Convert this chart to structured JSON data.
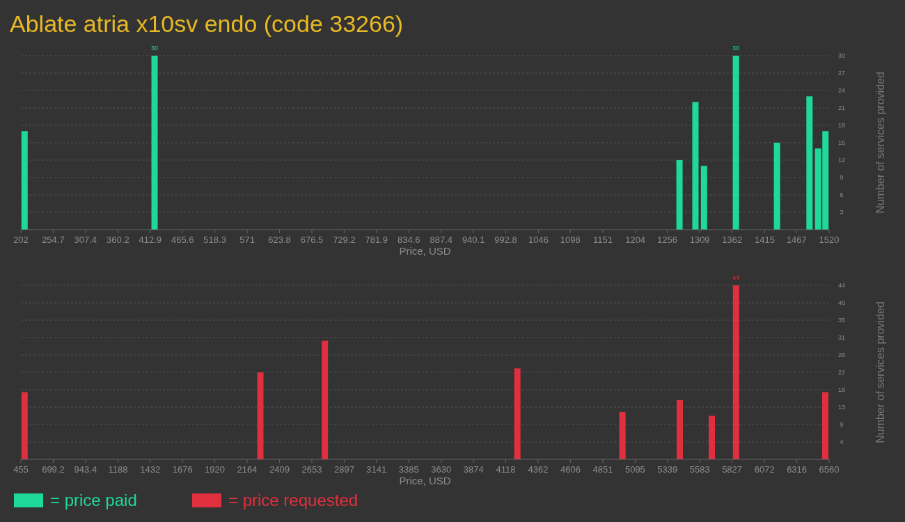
{
  "chart_data": [
    {
      "type": "bar",
      "title": "Ablate atria x10sv endo (code 33266)",
      "xlabel": "Price, USD",
      "ylabel": "Number of services provided",
      "x": [
        208,
        420,
        1276,
        1302,
        1316,
        1368,
        1435,
        1488,
        1502,
        1514
      ],
      "series": [
        {
          "name": "= price paid",
          "color": "#1ed99a",
          "values": [
            17,
            30,
            12,
            22,
            11,
            30,
            15,
            23,
            14,
            17
          ]
        }
      ],
      "value_labels": [
        null,
        "30",
        null,
        null,
        null,
        "30",
        null,
        null,
        null,
        null
      ],
      "xlim": [
        202,
        1520
      ],
      "xticks": [
        202,
        254.7,
        307.4,
        360.2,
        412.9,
        465.6,
        518.3,
        571,
        623.8,
        676.5,
        729.2,
        781.9,
        834.6,
        887.4,
        940.1,
        992.8,
        1046,
        1098,
        1151,
        1204,
        1256,
        1309,
        1362,
        1415,
        1467,
        1520
      ],
      "ylim": [
        0,
        30
      ],
      "yticks": [
        3,
        6,
        9,
        12,
        15,
        18,
        21,
        24,
        27,
        30
      ],
      "grid": "y",
      "legend": "bottom"
    },
    {
      "type": "bar",
      "xlabel": "Price, USD",
      "ylabel": "Number of services provided",
      "x": [
        483,
        2264,
        2751,
        4205,
        4999,
        5432,
        5674,
        5857,
        6531
      ],
      "series": [
        {
          "name": "= price requested",
          "color": "#e0303f",
          "values": [
            17,
            22,
            30,
            23,
            12,
            15,
            11,
            44,
            17
          ]
        }
      ],
      "value_labels": [
        null,
        null,
        null,
        null,
        null,
        null,
        null,
        "44",
        null
      ],
      "xlim": [
        455,
        6560
      ],
      "xticks": [
        455,
        699.2,
        943.4,
        1188,
        1432,
        1676,
        1920,
        2164,
        2409,
        2653,
        2897,
        3141,
        3385,
        3630,
        3874,
        4118,
        4362,
        4606,
        4851,
        5095,
        5339,
        5583,
        5827,
        6072,
        6316,
        6560
      ],
      "ylim": [
        0,
        44
      ],
      "yticks": [
        {
          "value": 4.4,
          "label": "4"
        },
        {
          "value": 8.8,
          "label": "9"
        },
        {
          "value": 13.2,
          "label": "13"
        },
        {
          "value": 17.6,
          "label": "18"
        },
        {
          "value": 22,
          "label": "22"
        },
        {
          "value": 26.4,
          "label": "26"
        },
        {
          "value": 30.8,
          "label": "31"
        },
        {
          "value": 35.2,
          "label": "35"
        },
        {
          "value": 39.6,
          "label": "40"
        },
        {
          "value": 44,
          "label": "44"
        }
      ],
      "grid": "y",
      "legend": "bottom"
    }
  ]
}
